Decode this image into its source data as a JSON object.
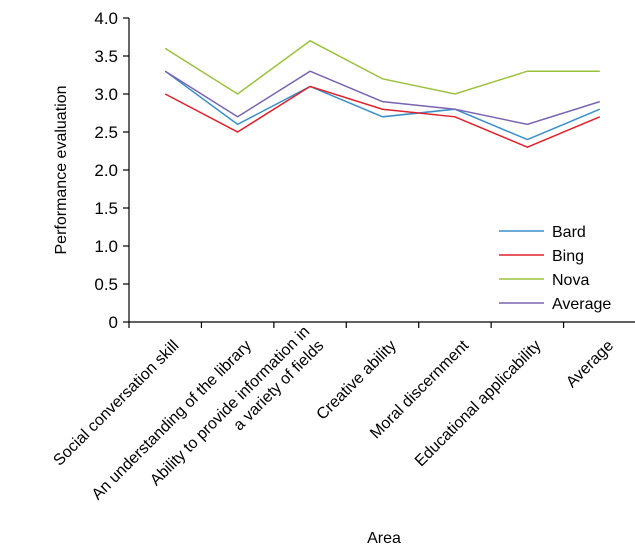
{
  "chart_data": {
    "type": "line",
    "title": "",
    "xlabel": "Area",
    "ylabel": "Performance evaluation",
    "ylim": [
      0,
      4
    ],
    "yticks": [
      "0",
      "0.5",
      "1.0",
      "1.5",
      "2.0",
      "2.5",
      "3.0",
      "3.5",
      "4.0"
    ],
    "categories": [
      [
        "Social conversation skill"
      ],
      [
        "An understanding of the library"
      ],
      [
        "Ability to provide information in",
        "a variety of fields"
      ],
      [
        "Creative ability"
      ],
      [
        "Moral discernment"
      ],
      [
        "Educational applicability"
      ],
      [
        "Average"
      ]
    ],
    "series": [
      {
        "name": "Bard",
        "color": "#3a8fc8",
        "values": [
          3.3,
          2.6,
          3.1,
          2.7,
          2.8,
          2.4,
          2.8
        ]
      },
      {
        "name": "Bing",
        "color": "#e0202a",
        "values": [
          3.0,
          2.5,
          3.1,
          2.8,
          2.7,
          2.3,
          2.7
        ]
      },
      {
        "name": "Nova",
        "color": "#9ac23c",
        "values": [
          3.6,
          3.0,
          3.7,
          3.2,
          3.0,
          3.3,
          3.3
        ]
      },
      {
        "name": "Average",
        "color": "#7a64b0",
        "values": [
          3.3,
          2.7,
          3.3,
          2.9,
          2.8,
          2.6,
          2.9
        ]
      }
    ],
    "grid": false,
    "legend_position": "lower-right"
  }
}
